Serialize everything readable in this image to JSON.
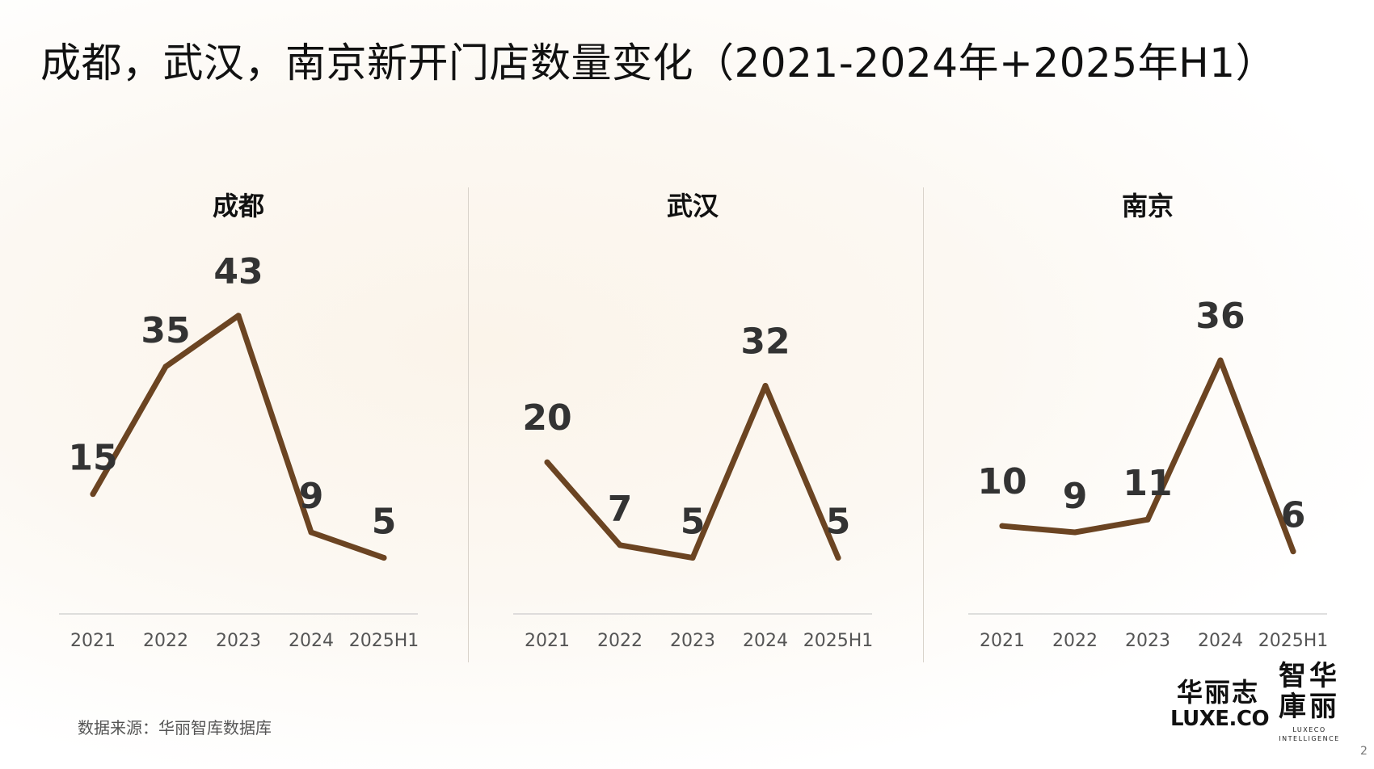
{
  "title": "成都，武汉，南京新开门店数量变化（2021-2024年+2025年H1）",
  "source": "数据来源：华丽智库数据库",
  "logo1": {
    "cn": "华丽志",
    "en": "LUXE.CO"
  },
  "logo2": {
    "cn_line1": "智华",
    "cn_line2": "庫丽",
    "en_line1": "LUXECO",
    "en_line2": "INTELLIGENCE"
  },
  "page_number": "2",
  "colors": {
    "line": "#6b4422",
    "axis": "#cccccc",
    "label": "#333333",
    "tick": "#555555"
  },
  "chart_data": [
    {
      "type": "line",
      "title": "成都",
      "categories": [
        "2021",
        "2022",
        "2023",
        "2024",
        "2025H1"
      ],
      "values": [
        15,
        35,
        43,
        9,
        5
      ],
      "data_labels": true,
      "grid": false
    },
    {
      "type": "line",
      "title": "武汉",
      "categories": [
        "2021",
        "2022",
        "2023",
        "2024",
        "2025H1"
      ],
      "values": [
        20,
        7,
        5,
        32,
        5
      ],
      "data_labels": true,
      "grid": false
    },
    {
      "type": "line",
      "title": "南京",
      "categories": [
        "2021",
        "2022",
        "2023",
        "2024",
        "2025H1"
      ],
      "values": [
        10,
        9,
        11,
        36,
        6
      ],
      "data_labels": true,
      "grid": false
    }
  ]
}
